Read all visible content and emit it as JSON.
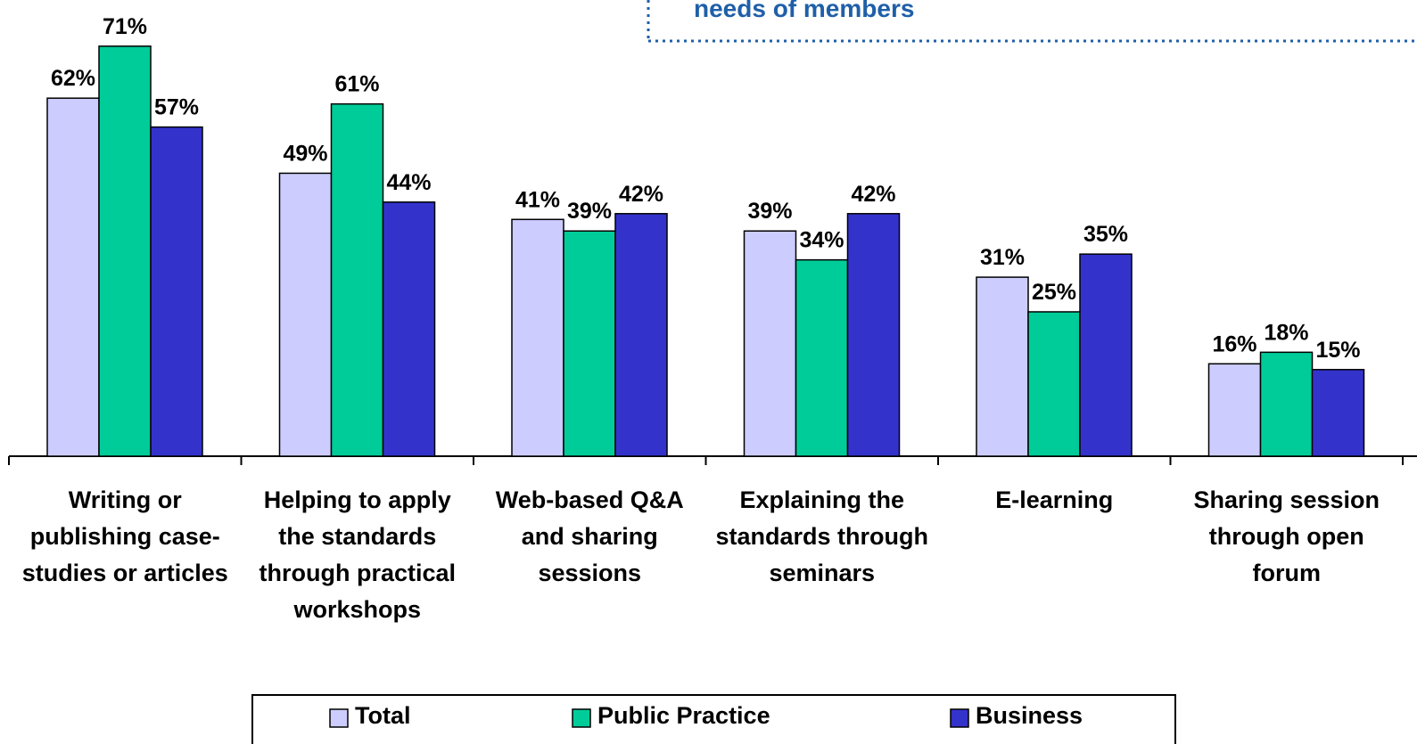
{
  "chart_data": {
    "type": "bar",
    "annotation": "needs of members",
    "categories": [
      "Writing or publishing case-studies or articles",
      "Helping to apply the standards through practical workshops",
      "Web-based Q&A and sharing sessions",
      "Explaining the standards through seminars",
      "E-learning",
      "Sharing session through open forum"
    ],
    "series": [
      {
        "name": "Total",
        "color": "#ccccff",
        "values": [
          62,
          49,
          41,
          39,
          31,
          16
        ],
        "value_labels": [
          "62%",
          "49%",
          "41%",
          "39%",
          "31%",
          "16%"
        ]
      },
      {
        "name": "Public Practice",
        "color": "#00cc99",
        "values": [
          71,
          61,
          39,
          34,
          25,
          18
        ],
        "value_labels": [
          "71%",
          "61%",
          "39%",
          "34%",
          "25%",
          "18%"
        ]
      },
      {
        "name": "Business",
        "color": "#3333cc",
        "values": [
          57,
          44,
          42,
          42,
          35,
          15
        ],
        "value_labels": [
          "57%",
          "44%",
          "42%",
          "42%",
          "35%",
          "15%"
        ]
      }
    ],
    "ylim": [
      0,
      79
    ]
  }
}
